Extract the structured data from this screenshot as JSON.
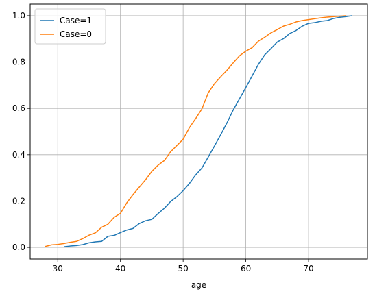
{
  "chart_data": {
    "type": "line",
    "title": "",
    "xlabel": "age",
    "ylabel": "",
    "xlim": [
      25.6,
      79.4
    ],
    "ylim": [
      -0.05,
      1.05
    ],
    "xticks": [
      30,
      40,
      50,
      60,
      70
    ],
    "yticks": [
      0.0,
      0.2,
      0.4,
      0.6,
      0.8,
      1.0
    ],
    "xtick_labels": [
      "30",
      "40",
      "50",
      "60",
      "70"
    ],
    "ytick_labels": [
      "0.0",
      "0.2",
      "0.4",
      "0.6",
      "0.8",
      "1.0"
    ],
    "grid": true,
    "legend_position": "top-left",
    "series": [
      {
        "name": "Case=1",
        "color": "#1f77b4",
        "x": [
          31,
          32,
          33,
          34,
          35,
          36,
          37,
          38,
          39,
          40,
          41,
          42,
          43,
          44,
          45,
          46,
          47,
          48,
          49,
          50,
          51,
          52,
          53,
          54,
          55,
          56,
          57,
          58,
          59,
          60,
          61,
          62,
          63,
          64,
          65,
          66,
          67,
          68,
          69,
          70,
          71,
          72,
          73,
          74,
          75,
          76,
          77
        ],
        "y": [
          0.003,
          0.006,
          0.008,
          0.012,
          0.02,
          0.024,
          0.026,
          0.048,
          0.052,
          0.064,
          0.075,
          0.082,
          0.103,
          0.115,
          0.121,
          0.146,
          0.169,
          0.198,
          0.219,
          0.245,
          0.276,
          0.313,
          0.343,
          0.39,
          0.438,
          0.487,
          0.538,
          0.594,
          0.642,
          0.69,
          0.74,
          0.79,
          0.831,
          0.858,
          0.886,
          0.901,
          0.923,
          0.936,
          0.955,
          0.967,
          0.97,
          0.976,
          0.979,
          0.988,
          0.993,
          0.996,
          1.0
        ]
      },
      {
        "name": "Case=0",
        "color": "#ff7f0e",
        "x": [
          28,
          29,
          30,
          31,
          32,
          33,
          34,
          35,
          36,
          37,
          38,
          39,
          40,
          41,
          42,
          43,
          44,
          45,
          46,
          47,
          48,
          49,
          50,
          51,
          52,
          53,
          54,
          55,
          56,
          57,
          58,
          59,
          60,
          61,
          62,
          63,
          64,
          65,
          66,
          67,
          68,
          69,
          70,
          71,
          72,
          73,
          74,
          75,
          76
        ],
        "y": [
          0.004,
          0.011,
          0.013,
          0.017,
          0.022,
          0.026,
          0.038,
          0.053,
          0.063,
          0.087,
          0.1,
          0.13,
          0.147,
          0.192,
          0.228,
          0.26,
          0.292,
          0.328,
          0.355,
          0.375,
          0.413,
          0.44,
          0.467,
          0.517,
          0.556,
          0.598,
          0.667,
          0.707,
          0.737,
          0.765,
          0.797,
          0.827,
          0.847,
          0.862,
          0.89,
          0.907,
          0.926,
          0.94,
          0.955,
          0.963,
          0.973,
          0.979,
          0.983,
          0.987,
          0.991,
          0.994,
          0.996,
          0.998,
          1.0
        ]
      }
    ]
  }
}
